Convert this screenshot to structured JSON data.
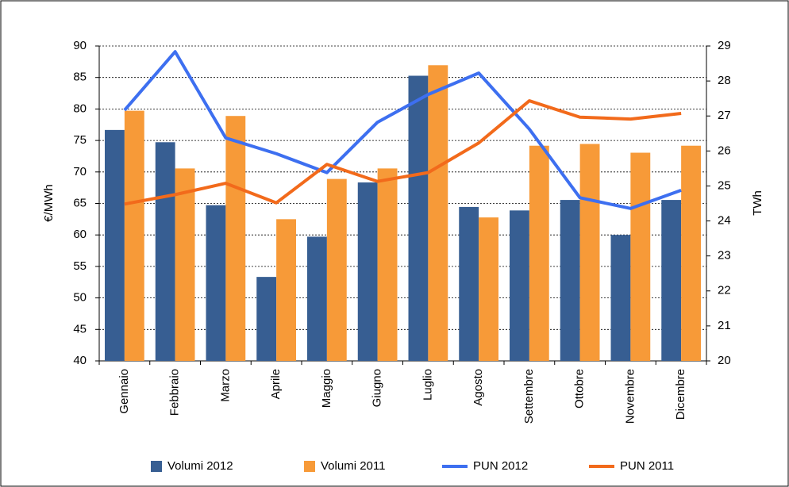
{
  "chart_data": {
    "type": "bar_line",
    "y_label": "€/MWh",
    "y2_label": "TWh",
    "categories": [
      "Gennaio",
      "Febbraio",
      "Marzo",
      "Aprile",
      "Maggio",
      "Giugno",
      "Luglio",
      "Agosto",
      "Settembre",
      "Ottobre",
      "Novembre",
      "Dicembre"
    ],
    "series": [
      {
        "name": "Volumi 2012",
        "kind": "bar",
        "axis": "y2",
        "color": "#375e92",
        "values": [
          26.6,
          26.25,
          24.45,
          22.4,
          23.55,
          25.1,
          28.15,
          24.4,
          24.3,
          24.6,
          23.6,
          24.6
        ]
      },
      {
        "name": "Volumi 2011",
        "kind": "bar",
        "axis": "y2",
        "color": "#f79a38",
        "values": [
          27.15,
          25.5,
          27.0,
          24.05,
          25.2,
          25.5,
          28.45,
          24.1,
          26.15,
          26.2,
          25.95,
          26.15
        ]
      },
      {
        "name": "PUN 2012",
        "kind": "line",
        "axis": "y",
        "color": "#3d6ff0",
        "values": [
          79.8,
          89.1,
          75.4,
          72.9,
          69.9,
          77.9,
          82.3,
          85.7,
          76.8,
          65.9,
          64.2,
          67.1
        ]
      },
      {
        "name": "PUN 2011",
        "kind": "line",
        "axis": "y",
        "color": "#f26a1b",
        "values": [
          64.9,
          66.4,
          68.2,
          65.1,
          71.2,
          68.5,
          69.9,
          74.6,
          81.3,
          78.7,
          78.4,
          79.3
        ]
      }
    ],
    "ylim": [
      40,
      90
    ],
    "yticks": [
      40,
      45,
      50,
      55,
      60,
      65,
      70,
      75,
      80,
      85,
      90
    ],
    "y2lim": [
      20,
      29
    ],
    "y2ticks": [
      20,
      21,
      22,
      23,
      24,
      25,
      26,
      27,
      28,
      29
    ],
    "grid": true,
    "legend": "bottom"
  }
}
